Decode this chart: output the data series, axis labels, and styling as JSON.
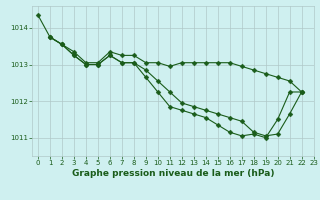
{
  "bg_color": "#cff0f0",
  "grid_color": "#b0c8c8",
  "line_color": "#1a5c1a",
  "marker_color": "#1a5c1a",
  "xlabel": "Graphe pression niveau de la mer (hPa)",
  "xlim": [
    -0.5,
    23
  ],
  "ylim": [
    1010.5,
    1014.6
  ],
  "yticks": [
    1011,
    1012,
    1013,
    1014
  ],
  "xticks": [
    0,
    1,
    2,
    3,
    4,
    5,
    6,
    7,
    8,
    9,
    10,
    11,
    12,
    13,
    14,
    15,
    16,
    17,
    18,
    19,
    20,
    21,
    22,
    23
  ],
  "series": [
    {
      "x": [
        0,
        1,
        2,
        3,
        4,
        5,
        6,
        7,
        8,
        9,
        10,
        11,
        12,
        13,
        14,
        15,
        16,
        17,
        18,
        19,
        20,
        21,
        22
      ],
      "y": [
        1014.35,
        1013.75,
        1013.55,
        1013.35,
        1013.05,
        1013.05,
        1013.35,
        1013.25,
        1013.25,
        1013.05,
        1013.05,
        1012.95,
        1013.05,
        1013.05,
        1013.05,
        1013.05,
        1013.05,
        1012.95,
        1012.85,
        1012.75,
        1012.65,
        1012.55,
        1012.25
      ]
    },
    {
      "x": [
        1,
        2,
        3,
        4,
        5,
        6,
        7,
        8,
        9,
        10,
        11,
        12,
        13,
        14,
        15,
        16,
        17,
        18,
        19,
        20,
        21,
        22
      ],
      "y": [
        1013.75,
        1013.55,
        1013.25,
        1013.0,
        1013.0,
        1013.25,
        1013.05,
        1013.05,
        1012.85,
        1012.55,
        1012.25,
        1011.95,
        1011.85,
        1011.75,
        1011.65,
        1011.55,
        1011.45,
        1011.15,
        1011.05,
        1011.1,
        1011.65,
        1012.25
      ]
    },
    {
      "x": [
        1,
        2,
        3,
        4,
        5,
        6,
        7,
        8,
        9,
        10,
        11,
        12,
        13,
        14,
        15,
        16,
        17,
        18,
        19,
        20,
        21,
        22
      ],
      "y": [
        1013.75,
        1013.55,
        1013.25,
        1013.0,
        1013.0,
        1013.25,
        1013.05,
        1013.05,
        1012.65,
        1012.25,
        1011.85,
        1011.75,
        1011.65,
        1011.55,
        1011.35,
        1011.15,
        1011.05,
        1011.1,
        1011.0,
        1011.5,
        1012.25,
        1012.25
      ]
    }
  ],
  "marker_size": 2.5,
  "line_width": 0.8,
  "xlabel_fontsize": 6.5,
  "tick_fontsize": 5.0,
  "xlabel_fontweight": "bold"
}
